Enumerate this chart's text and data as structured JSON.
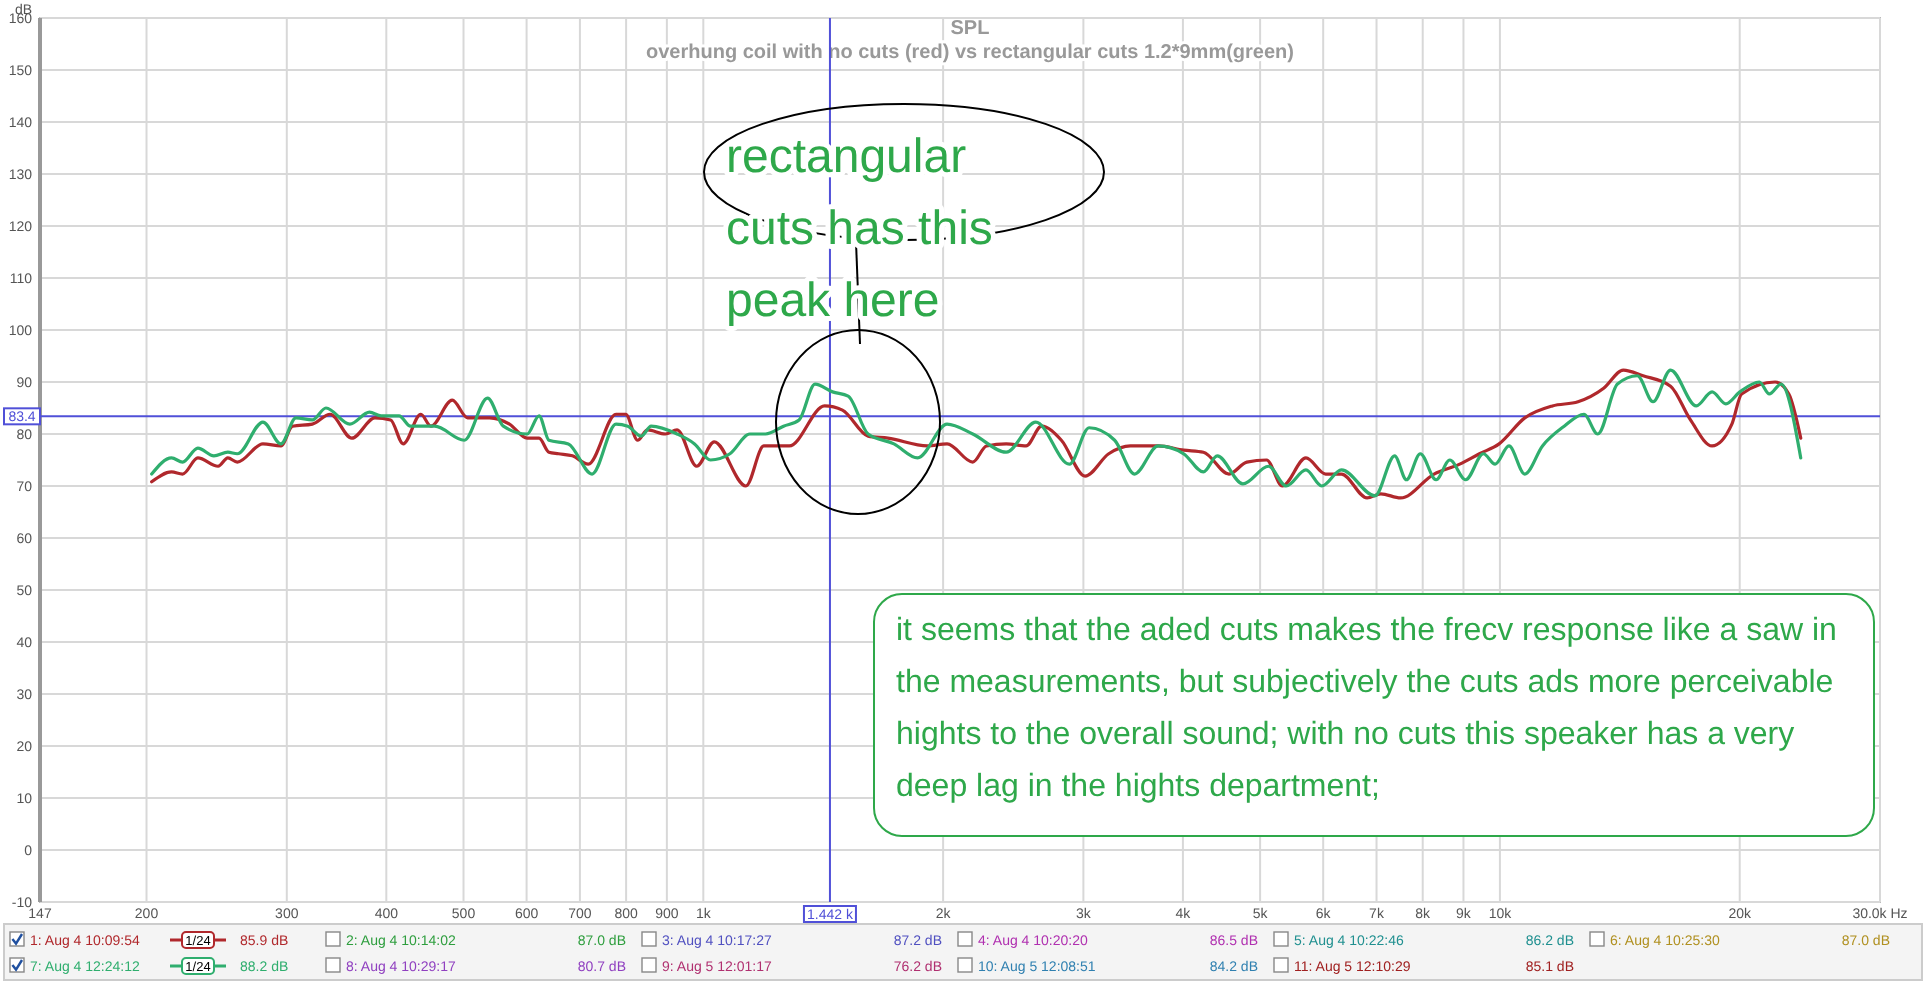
{
  "chart_data": {
    "type": "line",
    "title": "SPL",
    "subtitle": "overhung coil with no cuts (red) vs rectangular cuts 1.2*9mm(green)",
    "ylabel": "dB",
    "log": "x",
    "grid": true,
    "legend": "bottom",
    "xlim": [
      147,
      30000
    ],
    "xticks": [
      147,
      200,
      300,
      400,
      500,
      600,
      700,
      800,
      900,
      {
        "value": 1000,
        "label": "1k"
      },
      {
        "value": 2000,
        "label": "2k"
      },
      {
        "value": 3000,
        "label": "3k"
      },
      {
        "value": 4000,
        "label": "4k"
      },
      {
        "value": 5000,
        "label": "5k"
      },
      {
        "value": 6000,
        "label": "6k"
      },
      {
        "value": 7000,
        "label": "7k"
      },
      {
        "value": 8000,
        "label": "8k"
      },
      {
        "value": 9000,
        "label": "9k"
      },
      {
        "value": 10000,
        "label": "10k"
      },
      {
        "value": 20000,
        "label": "20k"
      },
      {
        "value": 30000,
        "label": "30.0k Hz"
      }
    ],
    "ylim": [
      -10,
      160
    ],
    "yticks": [
      -10,
      0,
      10,
      20,
      30,
      40,
      50,
      60,
      70,
      80,
      90,
      100,
      110,
      120,
      130,
      140,
      150,
      160
    ],
    "ref_lines": [
      {
        "axis": "y",
        "value": 83.4,
        "label": "83.4",
        "color": "#5050d8"
      },
      {
        "axis": "x",
        "value": 1442,
        "label": "1.442 k",
        "color": "#5050d8"
      }
    ],
    "series": [
      {
        "name": "1: Aug 4 10:09:54",
        "color": "#b0282c",
        "x": [
          203,
          215,
          222,
          232,
          246,
          253,
          260,
          280,
          295,
          305,
          323,
          340,
          362,
          387,
          405,
          420,
          442,
          455,
          484,
          506,
          539,
          571,
          601,
          622,
          640,
          658,
          685,
          717,
          777,
          799,
          827,
          851,
          896,
          927,
          981,
          1032,
          1131,
          1191,
          1282,
          1420,
          1495,
          1610,
          1705,
          1911,
          2023,
          2179,
          2267,
          2400,
          2542,
          2659,
          2815,
          3015,
          3228,
          3437,
          3724,
          4009,
          4244,
          4570,
          4811,
          5094,
          5332,
          5708,
          6043,
          6325,
          6811,
          7088,
          7504,
          8266,
          8902,
          9426,
          9977,
          10744,
          11637,
          12532,
          13497,
          14286,
          15126,
          16376,
          17346,
          18463,
          19551,
          20110,
          22153,
          23050,
          23858
        ],
        "values": [
          70.8,
          72.7,
          72.3,
          75.4,
          73.8,
          75.4,
          74.6,
          78.1,
          77.7,
          81.5,
          81.9,
          83.8,
          79.2,
          83.1,
          82.7,
          78.1,
          83.8,
          81.5,
          86.5,
          83.1,
          83.1,
          81.9,
          79.2,
          79.2,
          76.5,
          76.2,
          75.8,
          74.2,
          83.8,
          83.8,
          78.8,
          80.8,
          80.0,
          80.8,
          73.8,
          78.5,
          70.0,
          77.7,
          77.7,
          85.4,
          84.6,
          79.6,
          79.2,
          77.7,
          78.1,
          74.6,
          77.7,
          78.1,
          77.7,
          81.5,
          78.8,
          71.9,
          76.2,
          77.7,
          77.7,
          76.9,
          76.5,
          72.3,
          74.6,
          75.0,
          70.0,
          75.4,
          72.3,
          72.3,
          67.7,
          68.5,
          67.7,
          72.3,
          74.2,
          76.2,
          78.1,
          83.1,
          85.4,
          86.2,
          88.8,
          92.3,
          91.2,
          89.2,
          82.7,
          77.7,
          81.9,
          87.7,
          90.0,
          87.7,
          79.2
        ]
      },
      {
        "name": "7: Aug 4 12:24:12",
        "color": "#2fae6e",
        "x": [
          203,
          215,
          222,
          232,
          243,
          253,
          260,
          280,
          295,
          308,
          323,
          336,
          360,
          381,
          394,
          415,
          429,
          460,
          501,
          536,
          561,
          601,
          622,
          640,
          677,
          725,
          777,
          804,
          836,
          860,
          927,
          975,
          1021,
          1080,
          1144,
          1197,
          1261,
          1319,
          1381,
          1453,
          1520,
          1610,
          1735,
          1858,
          2023,
          2179,
          2400,
          2614,
          2881,
          3050,
          3284,
          3477,
          3724,
          4009,
          4244,
          4417,
          4757,
          5123,
          5392,
          5708,
          5974,
          6325,
          6968,
          7376,
          7632,
          7944,
          8314,
          8652,
          9057,
          9533,
          9864,
          10265,
          10744,
          11309,
          12042,
          12748,
          13267,
          14046,
          14876,
          15567,
          16376,
          17640,
          18463,
          19213,
          20007,
          21168,
          21785,
          22535,
          23858
        ],
        "values": [
          72.3,
          75.4,
          74.6,
          77.3,
          75.8,
          76.5,
          76.2,
          82.3,
          78.1,
          83.1,
          82.7,
          85.0,
          81.9,
          84.2,
          83.5,
          83.5,
          81.5,
          81.5,
          78.8,
          86.9,
          81.5,
          80.0,
          83.5,
          78.8,
          78.1,
          72.3,
          81.9,
          81.5,
          79.6,
          81.5,
          80.0,
          78.1,
          75.0,
          76.2,
          80.0,
          80.0,
          81.5,
          82.7,
          89.6,
          88.1,
          87.3,
          80.0,
          78.1,
          75.4,
          81.9,
          80.0,
          76.5,
          82.3,
          74.2,
          81.2,
          78.8,
          72.3,
          77.7,
          76.2,
          72.7,
          75.8,
          70.4,
          73.8,
          70.0,
          73.1,
          70.0,
          73.1,
          68.1,
          75.8,
          71.2,
          76.2,
          71.2,
          75.0,
          71.2,
          76.2,
          74.2,
          77.7,
          72.3,
          77.7,
          81.5,
          83.8,
          80.0,
          89.6,
          91.2,
          86.2,
          92.3,
          85.4,
          88.1,
          85.8,
          88.1,
          90.0,
          87.7,
          89.6,
          75.4
        ]
      }
    ],
    "annotations": [
      "rectangular cuts has this peak here",
      "it seems that the aded cuts makes the frecv response like a saw in the measurements, but subjectively the cuts ads more perceivable hights to the overall sound; with no cuts this speaker has a very deep lag in the hights department;",
      "1/24",
      "85.9 dB",
      "1/24",
      "88.2 dB",
      "2: Aug 4 10:14:02",
      "87.0 dB",
      "3: Aug 4 10:17:27",
      "87.2 dB",
      "4: Aug 4 10:20:20",
      "86.5 dB",
      "5: Aug 4 10:22:46",
      "86.2 dB",
      "6: Aug 4 10:25:30",
      "87.0 dB",
      "8: Aug 4 10:29:17",
      "80.7 dB",
      "9: Aug 5 12:01:17",
      "76.2 dB",
      "10: Aug 5 12:08:51",
      "84.2 dB",
      "11: Aug 5 12:10:29",
      "85.1 dB"
    ]
  }
}
